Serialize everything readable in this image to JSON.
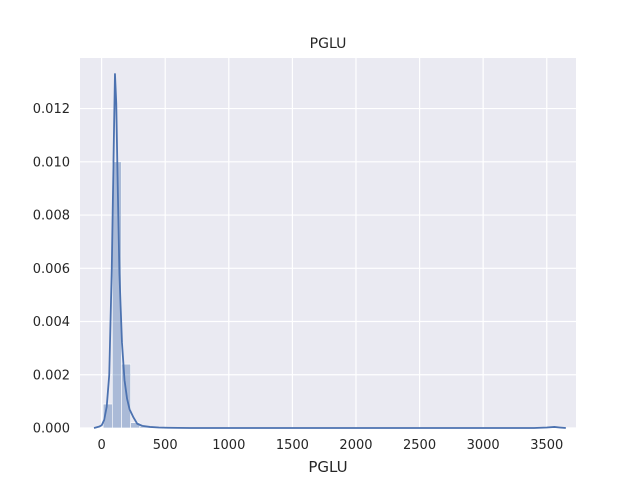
{
  "chart_data": {
    "type": "bar",
    "title": "PGLU",
    "xlabel": "PGLU",
    "ylabel": "",
    "xlim": [
      -170,
      3730
    ],
    "ylim": [
      0,
      0.0139
    ],
    "xticks": [
      0,
      500,
      1000,
      1500,
      2000,
      2500,
      3000,
      3500
    ],
    "xtick_labels": [
      "0",
      "500",
      "1000",
      "1500",
      "2000",
      "2500",
      "3000",
      "3500"
    ],
    "yticks": [
      0.0,
      0.002,
      0.004,
      0.006,
      0.008,
      0.01,
      0.012
    ],
    "ytick_labels": [
      "0.000",
      "0.002",
      "0.004",
      "0.006",
      "0.008",
      "0.010",
      "0.012"
    ],
    "grid": true,
    "background": "#eaeaf2",
    "grid_color": "#ffffff",
    "bar_color": "#4c72b0",
    "line_color": "#4c72b0",
    "histogram": {
      "bin_width": 72,
      "bin_left_edges": [
        12,
        84,
        156,
        228,
        300,
        372,
        444,
        516,
        588,
        660,
        3540
      ],
      "density": [
        0.0009,
        0.01,
        0.0024,
        0.0002,
        6e-05,
        2e-05,
        1e-05,
        1e-05,
        5e-06,
        3e-06,
        2e-05
      ]
    },
    "kde": {
      "x": [
        -60,
        -20,
        0,
        20,
        40,
        60,
        80,
        95,
        105,
        115,
        125,
        140,
        160,
        180,
        200,
        220,
        250,
        280,
        320,
        380,
        450,
        520,
        600,
        700,
        900,
        1200,
        1800,
        2500,
        3000,
        3400,
        3500,
        3560,
        3600,
        3650
      ],
      "y": [
        0.0,
        5e-05,
        0.0001,
        0.0003,
        0.0008,
        0.002,
        0.006,
        0.0105,
        0.0133,
        0.0122,
        0.0095,
        0.0058,
        0.0032,
        0.0018,
        0.0011,
        0.0007,
        0.0004,
        0.00016,
        8e-05,
        4e-05,
        2e-05,
        1e-05,
        5e-06,
        0.0,
        0.0,
        0.0,
        0.0,
        0.0,
        0.0,
        0.0,
        2e-05,
        4e-05,
        2e-05,
        0.0
      ]
    }
  }
}
